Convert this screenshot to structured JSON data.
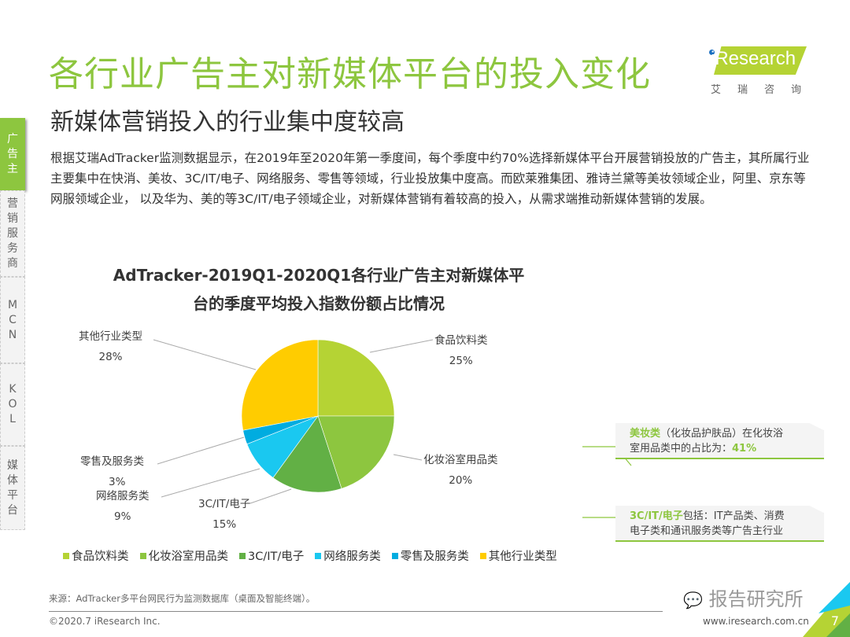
{
  "header": {
    "title": "各行业广告主对新媒体平台的投入变化",
    "subtitle": "新媒体营销投入的行业集中度较高",
    "logo_text": "iResearch",
    "logo_cn": "艾瑞咨询"
  },
  "sidebar": {
    "items": [
      {
        "label": "广告主",
        "active": true
      },
      {
        "label": "营销服务商",
        "active": false
      },
      {
        "label": "MCN",
        "active": false
      },
      {
        "label": "KOL",
        "active": false
      },
      {
        "label": "媒体平台",
        "active": false
      }
    ]
  },
  "body_text": "根据艾瑞AdTracker监测数据显示，在2019年至2020年第一季度间，每个季度中约70%选择新媒体平台开展营销投放的广告主，其所属行业主要集中在快消、美妆、3C/IT/电子、网络服务、零售等领域，行业投放集中度高。而欧莱雅集团、雅诗兰黛等美妆领域企业，阿里、京东等网服领域企业， 以及华为、美的等3C/IT/电子领域企业，对新媒体营销有着较高的投入，从需求端推动新媒体营销的发展。",
  "chart_data": {
    "type": "pie",
    "title_line1": "AdTracker-2019Q1-2020Q1各行业广告主对新媒体平",
    "title_line2": "台的季度平均投入指数份额占比情况",
    "categories": [
      "食品饮料类",
      "化妆浴室用品类",
      "3C/IT/电子",
      "网络服务类",
      "零售及服务类",
      "其他行业类型"
    ],
    "values": [
      25,
      20,
      15,
      9,
      3,
      28
    ],
    "labels": [
      "25%",
      "20%",
      "15%",
      "9%",
      "3%",
      "28%"
    ],
    "colors": [
      "#b5d334",
      "#8dc63f",
      "#62b045",
      "#1ac8f0",
      "#00ace0",
      "#ffcc00"
    ],
    "legend_position": "bottom"
  },
  "notes": [
    {
      "highlight": "美妆类",
      "text1": "（化妆品护肤品）在化妆浴",
      "text2": "室用品类中的占比为：",
      "value": "41%"
    },
    {
      "highlight": "3C/IT/电子",
      "text1": "包括：IT产品类、消费",
      "text2": "电子类和通讯服务类等广告主行业"
    }
  ],
  "footer": {
    "source": "来源：AdTracker多平台网民行为监测数据库（桌面及智能终端）。",
    "copyright": "©2020.7 iResearch Inc.",
    "wechat": "报告研究所",
    "url": "www.iresearch.com.cn",
    "page": "7"
  }
}
